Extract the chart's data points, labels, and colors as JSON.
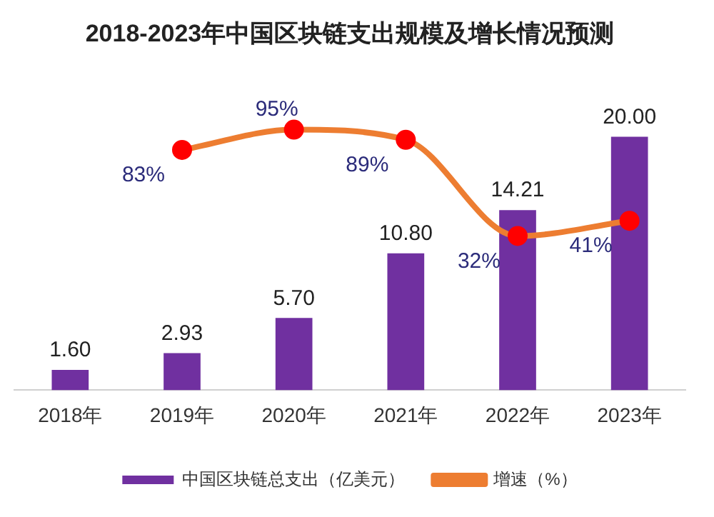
{
  "chart_data": {
    "type": "bar",
    "title": "2018-2023年中国区块链支出规模及增长情况预测",
    "categories": [
      "2018年",
      "2019年",
      "2020年",
      "2021年",
      "2022年",
      "2023年"
    ],
    "series": [
      {
        "name": "中国区块链总支出（亿美元）",
        "color": "#7030a0",
        "values": [
          1.6,
          2.93,
          5.7,
          10.8,
          14.21,
          20.0
        ],
        "value_labels": [
          "1.60",
          "2.93",
          "5.70",
          "10.80",
          "14.21",
          "20.00"
        ]
      },
      {
        "name": "增速（%）",
        "type": "line",
        "axis": "y2",
        "color": "#ed7d31",
        "values": [
          null,
          83,
          95,
          89,
          32,
          41
        ],
        "value_labels": [
          null,
          "83%",
          "95%",
          "89%",
          "32%",
          "41%"
        ]
      }
    ],
    "marker": "circle",
    "grid": false,
    "legend": "bottom",
    "tick_labels": "x"
  }
}
